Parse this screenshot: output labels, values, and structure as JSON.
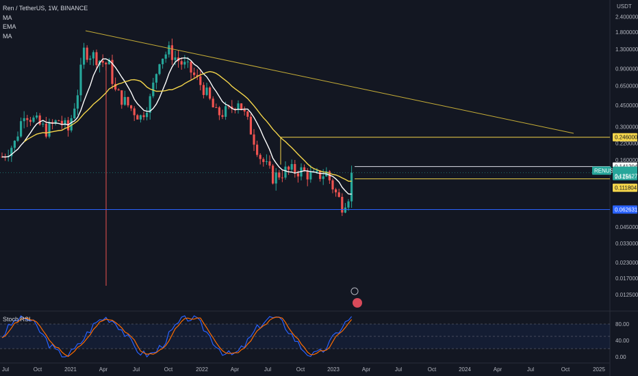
{
  "legend": {
    "symbol_line": "Ren / TetherUS, 1W, BINANCE",
    "indicators": [
      "MA",
      "EMA",
      "MA"
    ]
  },
  "indicator_title": "Stoch RSI",
  "colors": {
    "background": "#131722",
    "up": "#26a69a",
    "down": "#ef5350",
    "ma_white": "#ffffff",
    "ema_yellow": "#f5d64b",
    "trendline": "#c9b037",
    "support_blue": "#2962ff",
    "stoch_k": "#2962ff",
    "stoch_d": "#ff6d00"
  },
  "chart_data": {
    "type": "candlestick",
    "scale": "log",
    "price_axis": {
      "unit_label": "USDT",
      "ticks": [
        "2.400000",
        "1.800000",
        "1.300000",
        "0.900000",
        "0.650000",
        "0.450000",
        "0.300000",
        "0.220000",
        "0.160000",
        "0.045000",
        "0.033000",
        "0.023000",
        "0.017000",
        "0.012500"
      ]
    },
    "time_axis": {
      "ticks": [
        "Jul",
        "Oct",
        "2021",
        "Apr",
        "Jul",
        "Oct",
        "2022",
        "Apr",
        "Jul",
        "Oct",
        "2023",
        "Apr",
        "Jul",
        "Oct",
        "2024",
        "Apr",
        "Jul",
        "Oct",
        "2025"
      ]
    },
    "price_tags": [
      {
        "label": "0.246000",
        "kind": "level-yellow"
      },
      {
        "label": "0.141204",
        "kind": "level-white"
      },
      {
        "label": "RENUSDT",
        "kind": "symbol"
      },
      {
        "label": "0.125627",
        "kind": "last-price"
      },
      {
        "label": "2d 15h",
        "kind": "countdown"
      },
      {
        "label": "0.111804",
        "kind": "level-yellow-solid"
      },
      {
        "label": "0.062631",
        "kind": "level-blue"
      }
    ],
    "levels": [
      0.246,
      0.141204,
      0.111804,
      0.062631
    ],
    "last_price": 0.125627,
    "stoch_rsi": {
      "ticks": [
        "80.00",
        "40.00",
        "0.00"
      ],
      "band": [
        20,
        80
      ]
    }
  }
}
